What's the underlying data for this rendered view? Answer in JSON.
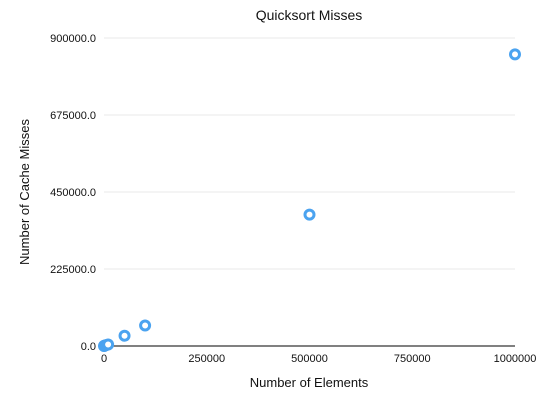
{
  "chart_data": {
    "type": "scatter",
    "title": "Quicksort Misses",
    "xlabel": "Number of Elements",
    "ylabel": "Number of Cache Misses",
    "xlim": [
      0,
      1000000
    ],
    "ylim": [
      0,
      900000
    ],
    "xticks": [
      0,
      250000,
      500000,
      750000,
      1000000
    ],
    "xtick_labels": [
      "0",
      "250000",
      "500000",
      "750000",
      "1000000"
    ],
    "yticks": [
      0,
      225000,
      450000,
      675000,
      900000
    ],
    "ytick_labels": [
      "0.0",
      "225000.0",
      "450000.0",
      "675000.0",
      "900000.0"
    ],
    "grid": "horizontal",
    "series": [
      {
        "name": "Quicksort Misses",
        "color": "#4ba3f0",
        "x": [
          100,
          500,
          1000,
          5000,
          10000,
          50000,
          100000,
          500000,
          1000000
        ],
        "y": [
          0,
          500,
          1000,
          2500,
          4500,
          30000,
          60000,
          384000,
          852000
        ]
      }
    ]
  }
}
